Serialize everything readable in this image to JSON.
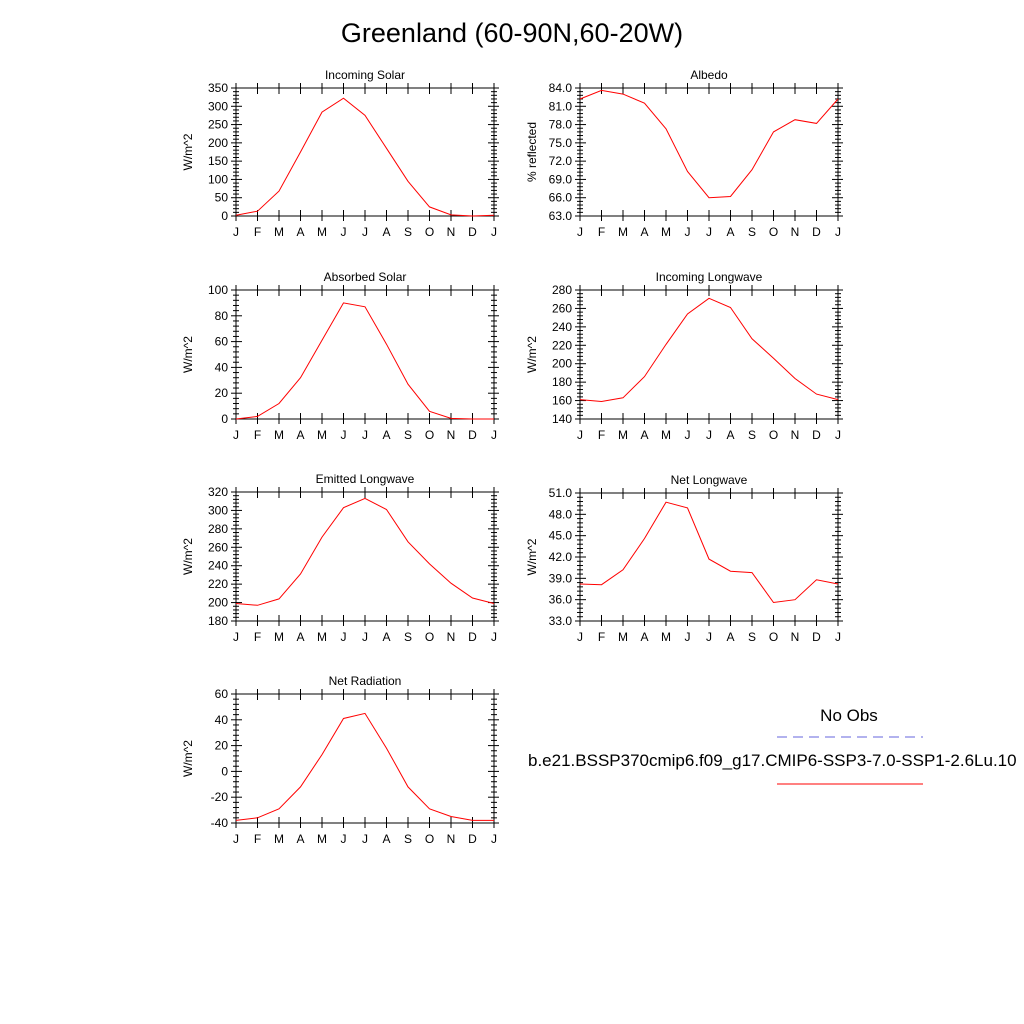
{
  "figure": {
    "title": "Greenland (60-90N,60-20W)"
  },
  "legend": {
    "obs_label": "No Obs",
    "obs_color": "#6666dd",
    "model_label": "b.e21.BSSP370cmip6.f09_g17.CMIP6-SSP3-7.0-SSP1-2.6Lu.10",
    "model_color": "#ff0000"
  },
  "chart_data": [
    {
      "type": "line",
      "title": "Incoming Solar",
      "ylabel": "W/m^2",
      "x": [
        "J",
        "F",
        "M",
        "A",
        "M",
        "J",
        "J",
        "A",
        "S",
        "O",
        "N",
        "D",
        "J"
      ],
      "series": [
        {
          "values": [
            2,
            13,
            68,
            175,
            284,
            322,
            275,
            185,
            95,
            25,
            3,
            0,
            2
          ]
        }
      ],
      "ylim": [
        0,
        350
      ],
      "yticks": [
        "0",
        "50",
        "100",
        "150",
        "200",
        "250",
        "300",
        "350"
      ],
      "color": "#ff0000"
    },
    {
      "type": "line",
      "title": "Albedo",
      "ylabel": "% reflected",
      "x": [
        "J",
        "F",
        "M",
        "A",
        "M",
        "J",
        "J",
        "A",
        "S",
        "O",
        "N",
        "D",
        "J"
      ],
      "series": [
        {
          "values": [
            82.2,
            83.6,
            83.0,
            81.5,
            77.3,
            70.3,
            66.0,
            66.2,
            70.6,
            76.8,
            78.8,
            78.2,
            82.2
          ]
        }
      ],
      "ylim": [
        63.0,
        84.0
      ],
      "yticks": [
        "63.0",
        "66.0",
        "69.0",
        "72.0",
        "75.0",
        "78.0",
        "81.0",
        "84.0"
      ],
      "color": "#ff0000"
    },
    {
      "type": "line",
      "title": "Absorbed Solar",
      "ylabel": "W/m^2",
      "x": [
        "J",
        "F",
        "M",
        "A",
        "M",
        "J",
        "J",
        "A",
        "S",
        "O",
        "N",
        "D",
        "J"
      ],
      "series": [
        {
          "values": [
            0,
            2,
            12,
            32,
            61,
            90,
            87,
            58,
            27,
            6,
            0.5,
            0,
            0
          ]
        }
      ],
      "ylim": [
        0,
        100
      ],
      "yticks": [
        "0",
        "20",
        "40",
        "60",
        "80",
        "100"
      ],
      "color": "#ff0000"
    },
    {
      "type": "line",
      "title": "Incoming Longwave",
      "ylabel": "W/m^2",
      "x": [
        "J",
        "F",
        "M",
        "A",
        "M",
        "J",
        "J",
        "A",
        "S",
        "O",
        "N",
        "D",
        "J"
      ],
      "series": [
        {
          "values": [
            161,
            159,
            163,
            186,
            221,
            254,
            271,
            261,
            227,
            206,
            184,
            167,
            161
          ]
        }
      ],
      "ylim": [
        140,
        280
      ],
      "yticks": [
        "140",
        "160",
        "180",
        "200",
        "220",
        "240",
        "260",
        "280"
      ],
      "color": "#ff0000"
    },
    {
      "type": "line",
      "title": "Emitted Longwave",
      "ylabel": "W/m^2",
      "x": [
        "J",
        "F",
        "M",
        "A",
        "M",
        "J",
        "J",
        "A",
        "S",
        "O",
        "N",
        "D",
        "J"
      ],
      "series": [
        {
          "values": [
            199,
            197,
            204,
            231,
            271,
            303,
            313,
            301,
            266,
            242,
            221,
            205,
            199
          ]
        }
      ],
      "ylim": [
        180,
        320
      ],
      "yticks": [
        "180",
        "200",
        "220",
        "240",
        "260",
        "280",
        "300",
        "320"
      ],
      "color": "#ff0000"
    },
    {
      "type": "line",
      "title": "Net Longwave",
      "ylabel": "W/m^2",
      "x": [
        "J",
        "F",
        "M",
        "A",
        "M",
        "J",
        "J",
        "A",
        "S",
        "O",
        "N",
        "D",
        "J"
      ],
      "series": [
        {
          "values": [
            38.2,
            38.1,
            40.2,
            44.6,
            49.7,
            48.9,
            41.7,
            40.0,
            39.8,
            35.6,
            36.0,
            38.8,
            38.2
          ]
        }
      ],
      "ylim": [
        33.0,
        51.0
      ],
      "yticks": [
        "33.0",
        "36.0",
        "39.0",
        "42.0",
        "45.0",
        "48.0",
        "51.0"
      ],
      "color": "#ff0000"
    },
    {
      "type": "line",
      "title": "Net Radiation",
      "ylabel": "W/m^2",
      "x": [
        "J",
        "F",
        "M",
        "A",
        "M",
        "J",
        "J",
        "A",
        "S",
        "O",
        "N",
        "D",
        "J"
      ],
      "series": [
        {
          "values": [
            -38,
            -36,
            -29,
            -12,
            13,
            41,
            45,
            18,
            -12,
            -29,
            -35,
            -38,
            -38
          ]
        }
      ],
      "ylim": [
        -40,
        60
      ],
      "yticks": [
        "-40",
        "-20",
        "0",
        "20",
        "40",
        "60"
      ],
      "color": "#ff0000"
    }
  ]
}
